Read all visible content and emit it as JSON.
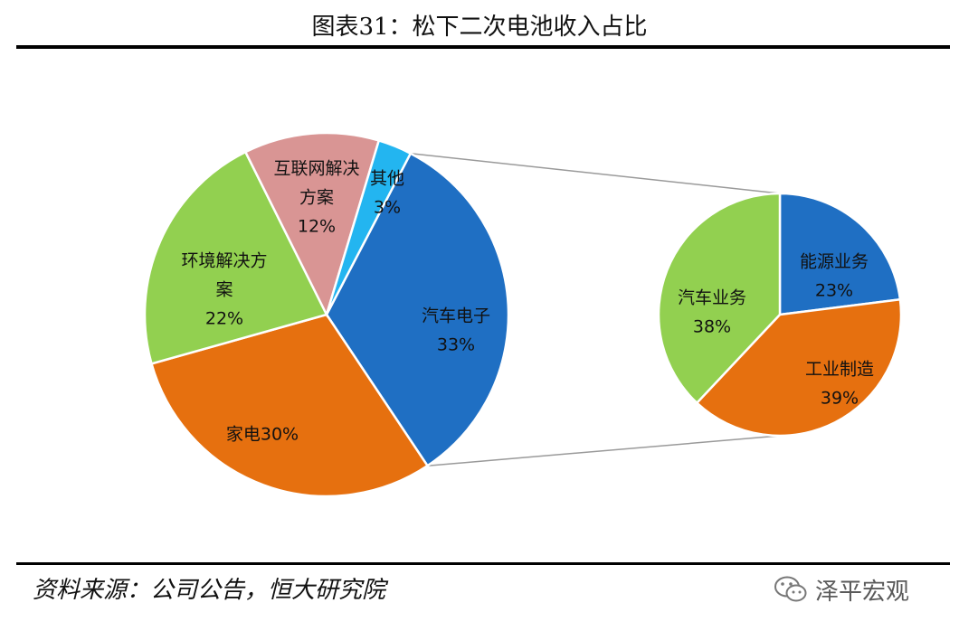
{
  "title": "图表31：松下二次电池收入占比",
  "source": "资料来源：公司公告，恒大研究院",
  "watermark": "泽平宏观",
  "watermark_icon": "wechat-icon",
  "colors": {
    "blue": "#1f6fc3",
    "orange": "#e6700f",
    "green": "#92d050",
    "pink": "#d99594",
    "cyan": "#23b5f0",
    "connector": "#9a9a9a"
  },
  "chart_data": [
    {
      "type": "pie",
      "name": "main",
      "slices": [
        {
          "label_lines": [
            "汽车电子",
            "33%"
          ],
          "value": 33,
          "color": "#1f6fc3"
        },
        {
          "label_lines": [
            "家电30%"
          ],
          "value": 30,
          "color": "#e6700f"
        },
        {
          "label_lines": [
            "环境解决方",
            "案",
            "22%"
          ],
          "value": 22,
          "color": "#92d050"
        },
        {
          "label_lines": [
            "互联网解决",
            "方案",
            "12%"
          ],
          "value": 12,
          "color": "#d99594"
        },
        {
          "label_lines": [
            "其他",
            "3%"
          ],
          "value": 3,
          "color": "#23b5f0"
        }
      ]
    },
    {
      "type": "pie",
      "name": "breakdown of 汽车电子",
      "slices": [
        {
          "label_lines": [
            "能源业务",
            "23%"
          ],
          "value": 23,
          "color": "#1f6fc3"
        },
        {
          "label_lines": [
            "工业制造",
            "39%"
          ],
          "value": 39,
          "color": "#e6700f"
        },
        {
          "label_lines": [
            "汽车业务",
            "38%"
          ],
          "value": 38,
          "color": "#92d050"
        }
      ]
    }
  ]
}
